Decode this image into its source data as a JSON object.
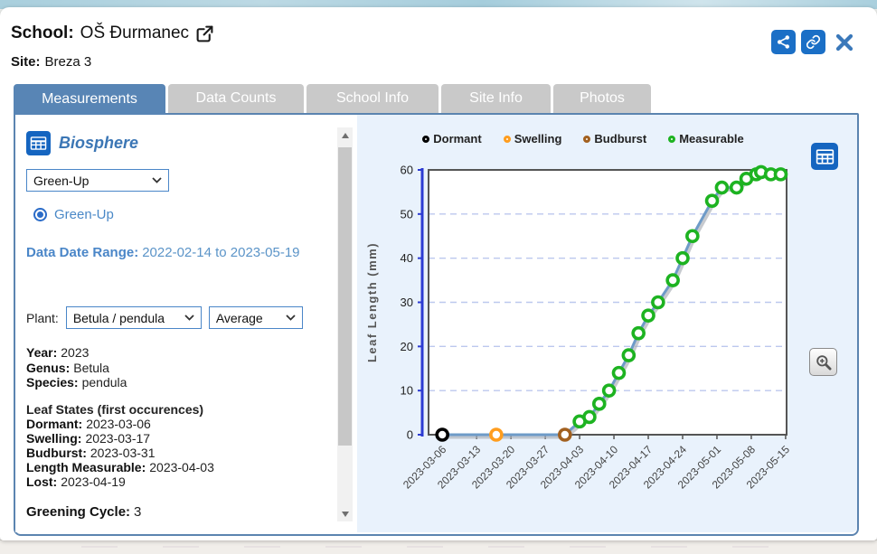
{
  "header": {
    "school_label": "School:",
    "school_name": "OŠ Đurmanec",
    "site_label": "Site:",
    "site_name": "Breza 3"
  },
  "tabs": [
    {
      "label": "Measurements",
      "active": true
    },
    {
      "label": "Data Counts",
      "active": false
    },
    {
      "label": "School Info",
      "active": false
    },
    {
      "label": "Site Info",
      "active": false
    },
    {
      "label": "Photos",
      "active": false
    }
  ],
  "sidebar": {
    "section_title": "Biosphere",
    "protocol_select": {
      "value": "Green-Up"
    },
    "radio": {
      "label": "Green-Up",
      "selected": true
    },
    "date_range": {
      "label": "Data Date Range:",
      "value": "2022-02-14 to 2023-05-19"
    },
    "plant": {
      "label": "Plant:",
      "plant_select": "Betula / pendula",
      "agg_select": "Average"
    },
    "details": [
      {
        "label": "Year:",
        "value": "2023"
      },
      {
        "label": "Genus:",
        "value": "Betula"
      },
      {
        "label": "Species:",
        "value": "pendula"
      }
    ],
    "leaf_states_title": "Leaf States (first occurences)",
    "leaf_states": [
      {
        "label": "Dormant:",
        "value": "2023-03-06"
      },
      {
        "label": "Swelling:",
        "value": "2023-03-17"
      },
      {
        "label": "Budburst:",
        "value": "2023-03-31"
      },
      {
        "label": "Length Measurable:",
        "value": "2023-04-03"
      },
      {
        "label": "Lost:",
        "value": "2023-04-19"
      }
    ],
    "greening_cycle": {
      "label": "Greening Cycle:",
      "value": "3"
    }
  },
  "chart_data": {
    "type": "scatter",
    "title": "",
    "xlabel": "",
    "ylabel": "Leaf Length (mm)",
    "ylim": [
      0,
      60
    ],
    "yticks": [
      0,
      10,
      20,
      30,
      40,
      50,
      60
    ],
    "grid": "dashed horizontal",
    "legend_position": "top",
    "xticks": [
      "2023-03-06",
      "2023-03-13",
      "2023-03-20",
      "2023-03-27",
      "2023-04-03",
      "2023-04-10",
      "2023-04-17",
      "2023-04-24",
      "2023-05-01",
      "2023-05-08",
      "2023-05-15"
    ],
    "legend": [
      {
        "label": "Dormant",
        "color": "#000000"
      },
      {
        "label": "Swelling",
        "color": "#ff9d1e"
      },
      {
        "label": "Budburst",
        "color": "#a2601f"
      },
      {
        "label": "Measurable",
        "color": "#1db321"
      }
    ],
    "state_colors": {
      "dormant": "#000000",
      "swelling": "#ff9d1e",
      "budburst": "#a2601f",
      "measurable": "#1db321"
    },
    "series": [
      {
        "name": "Average Leaf Length (mm)",
        "points": [
          {
            "date": "2023-03-06",
            "value": 0,
            "state": "dormant"
          },
          {
            "date": "2023-03-17",
            "value": 0,
            "state": "swelling"
          },
          {
            "date": "2023-03-31",
            "value": 0,
            "state": "budburst"
          },
          {
            "date": "2023-04-03",
            "value": 3,
            "state": "measurable"
          },
          {
            "date": "2023-04-05",
            "value": 4,
            "state": "measurable"
          },
          {
            "date": "2023-04-07",
            "value": 7,
            "state": "measurable"
          },
          {
            "date": "2023-04-09",
            "value": 10,
            "state": "measurable"
          },
          {
            "date": "2023-04-11",
            "value": 14,
            "state": "measurable"
          },
          {
            "date": "2023-04-13",
            "value": 18,
            "state": "measurable"
          },
          {
            "date": "2023-04-15",
            "value": 23,
            "state": "measurable"
          },
          {
            "date": "2023-04-17",
            "value": 27,
            "state": "measurable"
          },
          {
            "date": "2023-04-19",
            "value": 30,
            "state": "measurable"
          },
          {
            "date": "2023-04-22",
            "value": 35,
            "state": "measurable"
          },
          {
            "date": "2023-04-24",
            "value": 40,
            "state": "measurable"
          },
          {
            "date": "2023-04-26",
            "value": 45,
            "state": "measurable"
          },
          {
            "date": "2023-04-30",
            "value": 53,
            "state": "measurable"
          },
          {
            "date": "2023-05-02",
            "value": 56,
            "state": "measurable"
          },
          {
            "date": "2023-05-05",
            "value": 56,
            "state": "measurable"
          },
          {
            "date": "2023-05-07",
            "value": 58,
            "state": "measurable"
          },
          {
            "date": "2023-05-09",
            "value": 59,
            "state": "measurable"
          },
          {
            "date": "2023-05-10",
            "value": 59.5,
            "state": "measurable"
          },
          {
            "date": "2023-05-12",
            "value": 59,
            "state": "measurable"
          },
          {
            "date": "2023-05-14",
            "value": 59,
            "state": "measurable"
          }
        ]
      }
    ]
  },
  "colors": {
    "active_tab": "#5885b5",
    "inactive_tab": "#c9c9c9",
    "accent_button_blue": "#1b6fc6",
    "steel_text": "#4a86c8",
    "panel_bg": "#e9f2fc",
    "content_border": "#5b84b0",
    "line": "#6e9bc8",
    "axis_blue": "#2c3bd2"
  }
}
